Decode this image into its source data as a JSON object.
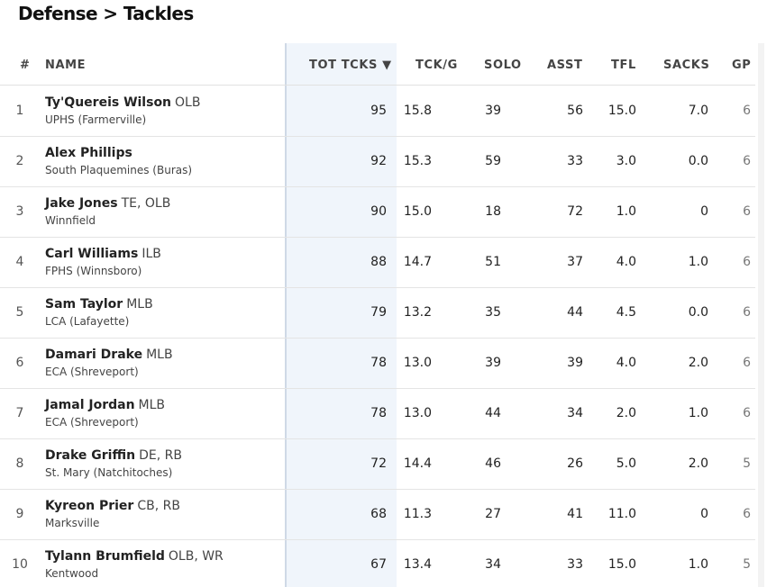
{
  "page": {
    "title": "Defense > Tackles"
  },
  "table": {
    "headers": {
      "rank": "#",
      "name": "NAME",
      "tot": "TOT TCKS",
      "sort_arrow": "▼",
      "tckg": "TCK/G",
      "solo": "SOLO",
      "asst": "ASST",
      "tfl": "TFL",
      "sacks": "SACKS",
      "gp": "GP"
    },
    "rows": [
      {
        "rank": "1",
        "name": "Ty'Quereis Wilson",
        "pos": "OLB",
        "school": "UPHS (Farmerville)",
        "tot": "95",
        "tckg": "15.8",
        "solo": "39",
        "asst": "56",
        "tfl": "15.0",
        "sacks": "7.0",
        "gp": "6"
      },
      {
        "rank": "2",
        "name": "Alex Phillips",
        "pos": "",
        "school": "South Plaquemines (Buras)",
        "tot": "92",
        "tckg": "15.3",
        "solo": "59",
        "asst": "33",
        "tfl": "3.0",
        "sacks": "0.0",
        "gp": "6"
      },
      {
        "rank": "3",
        "name": "Jake Jones",
        "pos": "TE, OLB",
        "school": "Winnfield",
        "tot": "90",
        "tckg": "15.0",
        "solo": "18",
        "asst": "72",
        "tfl": "1.0",
        "sacks": "0",
        "gp": "6"
      },
      {
        "rank": "4",
        "name": "Carl Williams",
        "pos": "ILB",
        "school": "FPHS (Winnsboro)",
        "tot": "88",
        "tckg": "14.7",
        "solo": "51",
        "asst": "37",
        "tfl": "4.0",
        "sacks": "1.0",
        "gp": "6"
      },
      {
        "rank": "5",
        "name": "Sam Taylor",
        "pos": "MLB",
        "school": "LCA (Lafayette)",
        "tot": "79",
        "tckg": "13.2",
        "solo": "35",
        "asst": "44",
        "tfl": "4.5",
        "sacks": "0.0",
        "gp": "6"
      },
      {
        "rank": "6",
        "name": "Damari Drake",
        "pos": "MLB",
        "school": "ECA (Shreveport)",
        "tot": "78",
        "tckg": "13.0",
        "solo": "39",
        "asst": "39",
        "tfl": "4.0",
        "sacks": "2.0",
        "gp": "6"
      },
      {
        "rank": "7",
        "name": "Jamal Jordan",
        "pos": "MLB",
        "school": "ECA (Shreveport)",
        "tot": "78",
        "tckg": "13.0",
        "solo": "44",
        "asst": "34",
        "tfl": "2.0",
        "sacks": "1.0",
        "gp": "6"
      },
      {
        "rank": "8",
        "name": "Drake Griffin",
        "pos": "DE, RB",
        "school": "St. Mary (Natchitoches)",
        "tot": "72",
        "tckg": "14.4",
        "solo": "46",
        "asst": "26",
        "tfl": "5.0",
        "sacks": "2.0",
        "gp": "5"
      },
      {
        "rank": "9",
        "name": "Kyreon Prier",
        "pos": "CB, RB",
        "school": "Marksville",
        "tot": "68",
        "tckg": "11.3",
        "solo": "27",
        "asst": "41",
        "tfl": "11.0",
        "sacks": "0",
        "gp": "6"
      },
      {
        "rank": "10",
        "name": "Tylann Brumfield",
        "pos": "OLB, WR",
        "school": "Kentwood",
        "tot": "67",
        "tckg": "13.4",
        "solo": "34",
        "asst": "33",
        "tfl": "15.0",
        "sacks": "1.0",
        "gp": "5"
      }
    ]
  }
}
